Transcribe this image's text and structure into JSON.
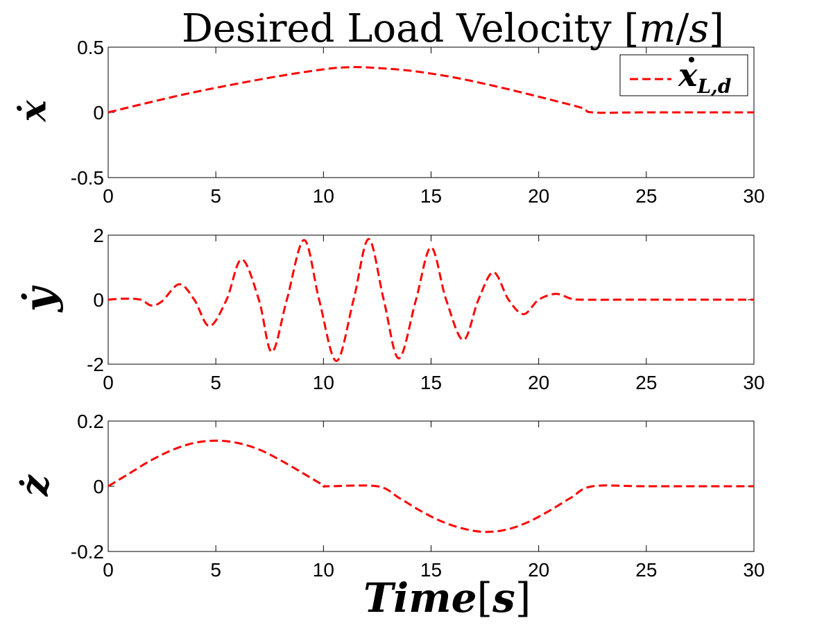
{
  "figure": {
    "title_text": "Desired Load Velocity ",
    "title_unit_m": "m",
    "title_unit_sep": "/",
    "title_unit_s": "s",
    "title_bracket_open": "[",
    "title_bracket_close": "]",
    "xlabel_word": "Time",
    "xlabel_bracket_open": "[",
    "xlabel_unit": "s",
    "xlabel_bracket_close": "]"
  },
  "legend": {
    "label_var": "x",
    "label_sub": "L,d",
    "line_color": "#ff0000"
  },
  "colors": {
    "series": "#ff0000",
    "axes": "#000000",
    "background": "#ffffff"
  },
  "chart_data": [
    {
      "type": "line",
      "ylabel": "ẋ",
      "xlim": [
        0,
        30
      ],
      "ylim": [
        -0.5,
        0.5
      ],
      "xticks": [
        0,
        5,
        10,
        15,
        20,
        25,
        30
      ],
      "yticks": [
        "-0.5",
        "0",
        "0.5"
      ],
      "grid": false,
      "legend": "top-right",
      "series": [
        {
          "name": "ẋ_{L,d}",
          "style": "dashed",
          "color": "#ff0000",
          "x": [
            0,
            2,
            4,
            6,
            8,
            10,
            11,
            12,
            14,
            16,
            18,
            20,
            22,
            22.5,
            25,
            30
          ],
          "y": [
            0,
            0.08,
            0.155,
            0.22,
            0.28,
            0.33,
            0.345,
            0.345,
            0.32,
            0.27,
            0.2,
            0.12,
            0.035,
            0,
            0,
            0
          ]
        }
      ]
    },
    {
      "type": "line",
      "ylabel": "ẏ",
      "xlim": [
        0,
        30
      ],
      "ylim": [
        -2,
        2
      ],
      "xticks": [
        0,
        5,
        10,
        15,
        20,
        25,
        30
      ],
      "yticks": [
        "-2",
        "0",
        "2"
      ],
      "grid": false,
      "series": [
        {
          "color": "#ff0000",
          "style": "dashed",
          "x": [
            0,
            0.7,
            1.5,
            2.0,
            2.5,
            3.3,
            4.0,
            4.7,
            5.5,
            6.2,
            7.0,
            7.6,
            8.3,
            9.1,
            9.8,
            10.6,
            11.4,
            12.1,
            12.8,
            13.5,
            14.3,
            15.0,
            15.7,
            16.5,
            17.2,
            17.9,
            18.6,
            19.3,
            20.0,
            20.8,
            21.5,
            22.0,
            25,
            30
          ],
          "y": [
            0,
            0.03,
            0.0,
            -0.18,
            -0.05,
            0.48,
            0.0,
            -0.82,
            0.0,
            1.25,
            0.0,
            -1.62,
            0.0,
            1.85,
            0.0,
            -1.9,
            0.0,
            1.88,
            0.0,
            -1.82,
            0.0,
            1.62,
            0.0,
            -1.25,
            0.0,
            0.85,
            0.0,
            -0.45,
            0.0,
            0.18,
            0.03,
            0,
            0,
            0
          ]
        }
      ]
    },
    {
      "type": "line",
      "ylabel": "ż",
      "xlim": [
        0,
        30
      ],
      "ylim": [
        -0.2,
        0.2
      ],
      "xticks": [
        0,
        5,
        10,
        15,
        20,
        25,
        30
      ],
      "yticks": [
        "-0.2",
        "0",
        "0.2"
      ],
      "grid": false,
      "series": [
        {
          "color": "#ff0000",
          "style": "dashed",
          "x": [
            0,
            1,
            2,
            3,
            4,
            5,
            6,
            7,
            8,
            9,
            10,
            10.2,
            12.5,
            13.5,
            14.5,
            15.5,
            16.5,
            17.5,
            18.5,
            19.5,
            20.5,
            21.5,
            22.5,
            25,
            30
          ],
          "y": [
            0,
            0.04,
            0.08,
            0.112,
            0.133,
            0.14,
            0.133,
            0.113,
            0.08,
            0.042,
            0.003,
            0,
            0,
            -0.035,
            -0.075,
            -0.108,
            -0.13,
            -0.14,
            -0.133,
            -0.11,
            -0.075,
            -0.035,
            0,
            0,
            0
          ]
        }
      ]
    }
  ]
}
